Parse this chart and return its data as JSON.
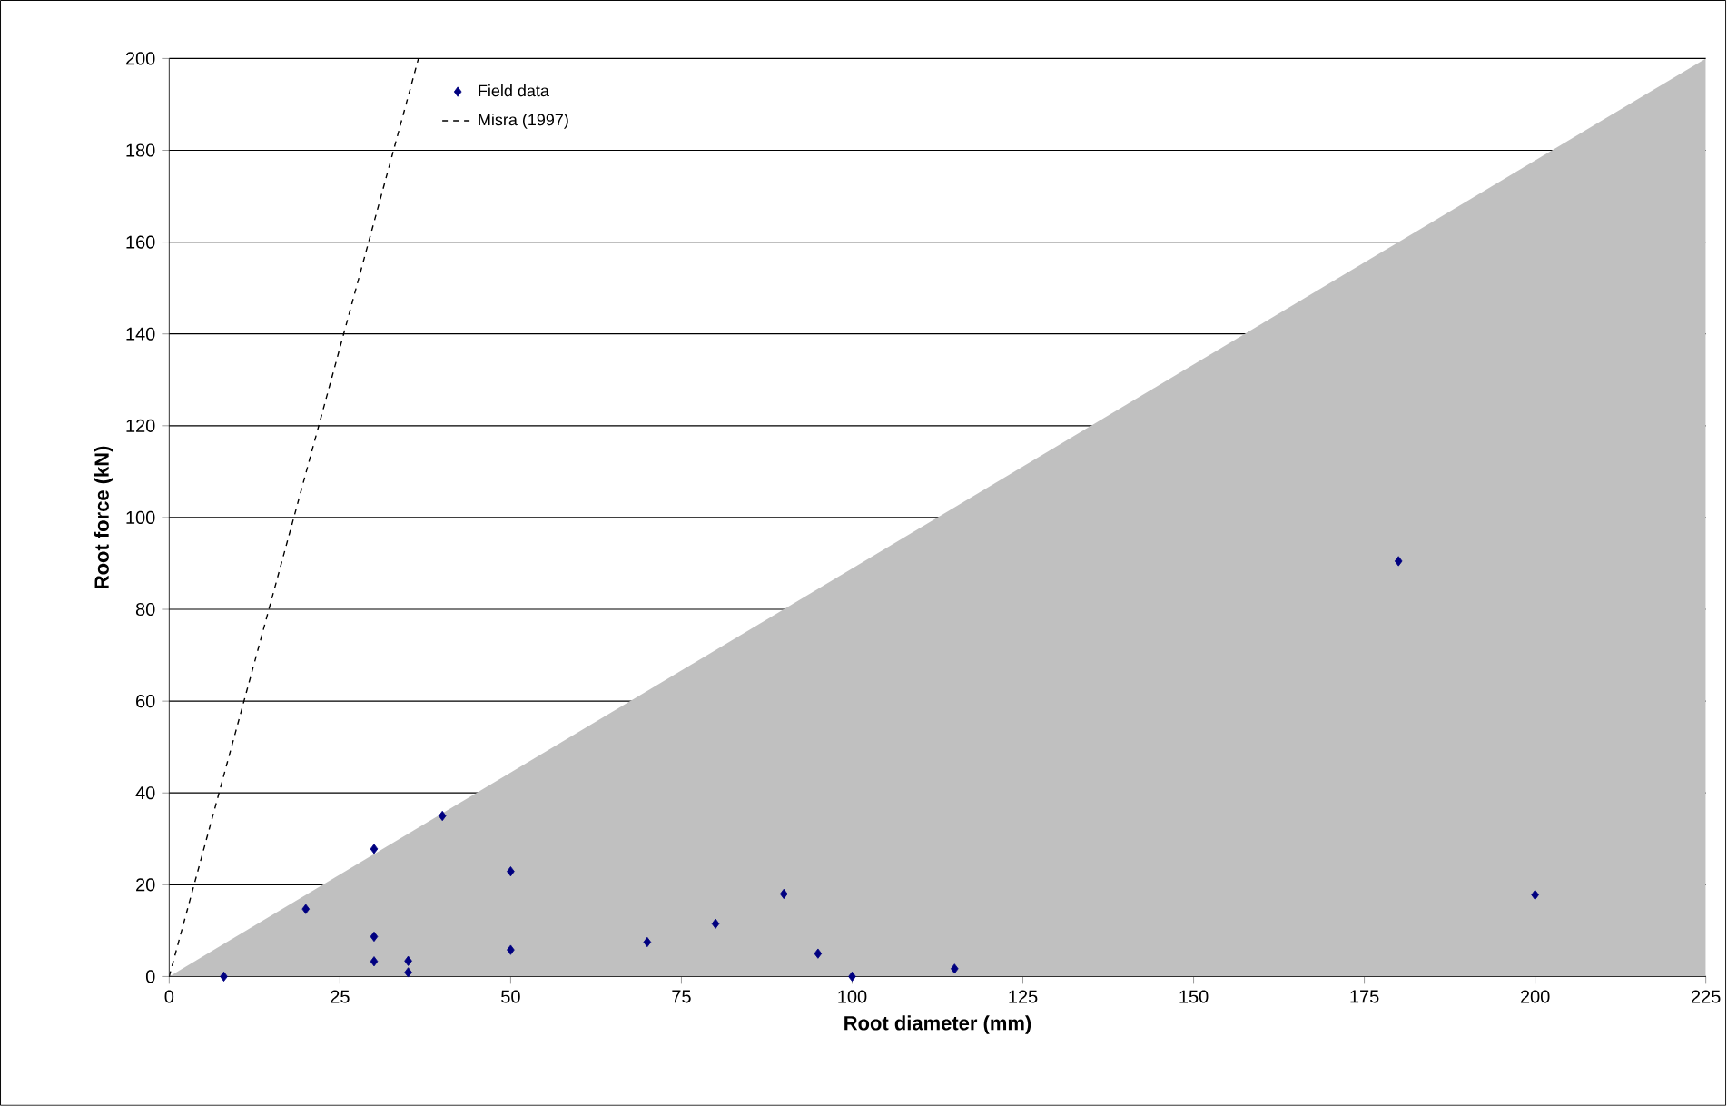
{
  "chart_data": {
    "type": "scatter",
    "xlabel": "Root diameter (mm)",
    "ylabel": "Root force (kN)",
    "xlim": [
      0,
      225
    ],
    "ylim": [
      0,
      200
    ],
    "xticks": [
      0,
      25,
      50,
      75,
      100,
      125,
      150,
      175,
      200,
      225
    ],
    "yticks": [
      0,
      20,
      40,
      60,
      80,
      100,
      120,
      140,
      160,
      180,
      200
    ],
    "grid": "y",
    "legend": "top left",
    "series": [
      {
        "type": "area",
        "color": "#c0c0c0",
        "x": [
          0,
          225
        ],
        "values": [
          0,
          200
        ]
      },
      {
        "name": "Field data",
        "color": "#000080",
        "marker": "diamond",
        "x": [
          8,
          20,
          30,
          30,
          30,
          35,
          35,
          40,
          50,
          50,
          70,
          80,
          90,
          95,
          100,
          115,
          180,
          200
        ],
        "values": [
          0,
          14.7,
          27.8,
          8.7,
          3.3,
          3.4,
          0.9,
          35,
          22.9,
          5.8,
          7.5,
          11.5,
          18,
          5,
          0,
          1.7,
          90.5,
          17.8
        ]
      },
      {
        "type": "line",
        "name": "Misra (1997)",
        "color": "#000000",
        "line_style": "dashed",
        "marker": "none",
        "x": [
          0,
          36.5
        ],
        "values": [
          0,
          200
        ]
      }
    ]
  }
}
